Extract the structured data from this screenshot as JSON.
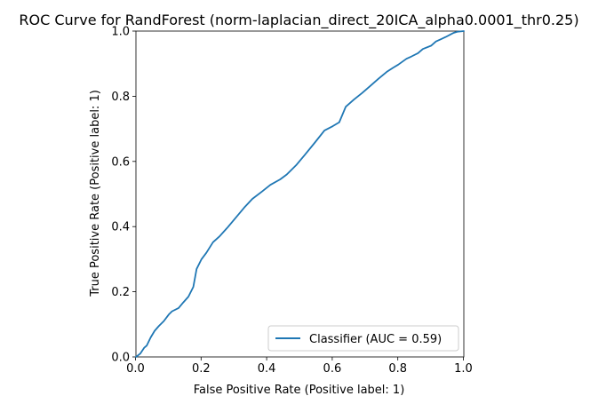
{
  "chart_data": {
    "type": "line",
    "title": "ROC Curve for RandForest (norm-laplacian_direct_20ICA_alpha0.0001_thr0.25)",
    "xlabel": "False Positive Rate (Positive label: 1)",
    "ylabel": "True Positive Rate (Positive label: 1)",
    "xlim": [
      0.0,
      1.0
    ],
    "ylim": [
      0.0,
      1.0
    ],
    "xticks": [
      "0.0",
      "0.2",
      "0.4",
      "0.6",
      "0.8",
      "1.0"
    ],
    "yticks": [
      "0.0",
      "0.2",
      "0.4",
      "0.6",
      "0.8",
      "1.0"
    ],
    "grid": false,
    "legend_position": "lower-right",
    "series": [
      {
        "name": "Classifier (AUC = 0.59)",
        "color": "#1f77b4",
        "x": [
          0.0,
          0.013,
          0.025,
          0.033,
          0.045,
          0.057,
          0.07,
          0.085,
          0.1,
          0.11,
          0.13,
          0.145,
          0.16,
          0.175,
          0.185,
          0.2,
          0.215,
          0.235,
          0.255,
          0.28,
          0.305,
          0.33,
          0.355,
          0.385,
          0.41,
          0.44,
          0.46,
          0.49,
          0.515,
          0.545,
          0.575,
          0.6,
          0.62,
          0.64,
          0.665,
          0.69,
          0.715,
          0.74,
          0.765,
          0.785,
          0.8,
          0.825,
          0.84,
          0.86,
          0.875,
          0.9,
          0.915,
          0.93,
          0.945,
          0.96,
          0.97,
          0.98,
          0.99,
          1.0
        ],
        "y": [
          0.0,
          0.01,
          0.028,
          0.035,
          0.06,
          0.08,
          0.095,
          0.11,
          0.13,
          0.14,
          0.15,
          0.168,
          0.185,
          0.215,
          0.27,
          0.3,
          0.32,
          0.352,
          0.37,
          0.398,
          0.428,
          0.458,
          0.485,
          0.508,
          0.528,
          0.545,
          0.56,
          0.59,
          0.62,
          0.657,
          0.695,
          0.708,
          0.72,
          0.768,
          0.79,
          0.81,
          0.832,
          0.854,
          0.875,
          0.888,
          0.897,
          0.915,
          0.922,
          0.932,
          0.945,
          0.955,
          0.968,
          0.975,
          0.982,
          0.99,
          0.995,
          0.998,
          0.999,
          1.0
        ]
      }
    ]
  }
}
